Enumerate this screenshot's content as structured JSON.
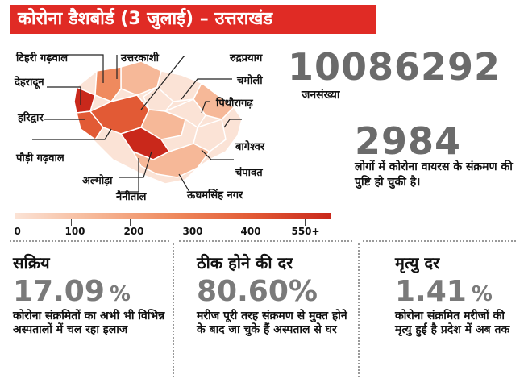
{
  "header": {
    "title": "कोरोना डैशबोर्ड (3 जुलाई) – उत्तराखंड"
  },
  "map": {
    "districts": [
      "टिहरी गढ़वाल",
      "उत्तरकाशी",
      "रुद्रप्रयाग",
      "देहरादून",
      "चमोली",
      "हरिद्वार",
      "पिथौरागढ़",
      "बागेश्वर",
      "पौड़ी गढ़वाल",
      "चंपावत",
      "अल्मोड़ा",
      "नैनीताल",
      "ऊधमसिंह नगर"
    ],
    "colors": {
      "lightest": "#fbe3d6",
      "light": "#f6b898",
      "medium": "#ef8a5e",
      "dark": "#e25a35",
      "darkest": "#c9281b"
    }
  },
  "population": {
    "value": "10086292",
    "label": "जनसंख्या"
  },
  "confirmed": {
    "value": "2984",
    "text": "लोगों में कोरोना वायरस के संक्रमण की पुष्टि हो चुकी है।"
  },
  "scale": {
    "ticks": [
      "0",
      "100",
      "200",
      "300",
      "400",
      "550+"
    ]
  },
  "stats": [
    {
      "title": "सक्रिय",
      "value": "17.09",
      "unit": "%",
      "desc": "कोरोना संक्रमितों का अभी भी विभिन्न अस्पतालों में चल रहा इलाज"
    },
    {
      "title": "ठीक होने की दर",
      "value": "80.60",
      "unit": "%",
      "desc": "मरीज पूरी तरह संक्रमण से मुक्त होने के बाद जा चुके हैं अस्पताल से घर"
    },
    {
      "title": "मृत्यु दर",
      "value": "1.41",
      "unit": "%",
      "desc": "कोरोना संक्रमित मरीजों की मृत्यु हुई है प्रदेश में अब तक"
    }
  ]
}
